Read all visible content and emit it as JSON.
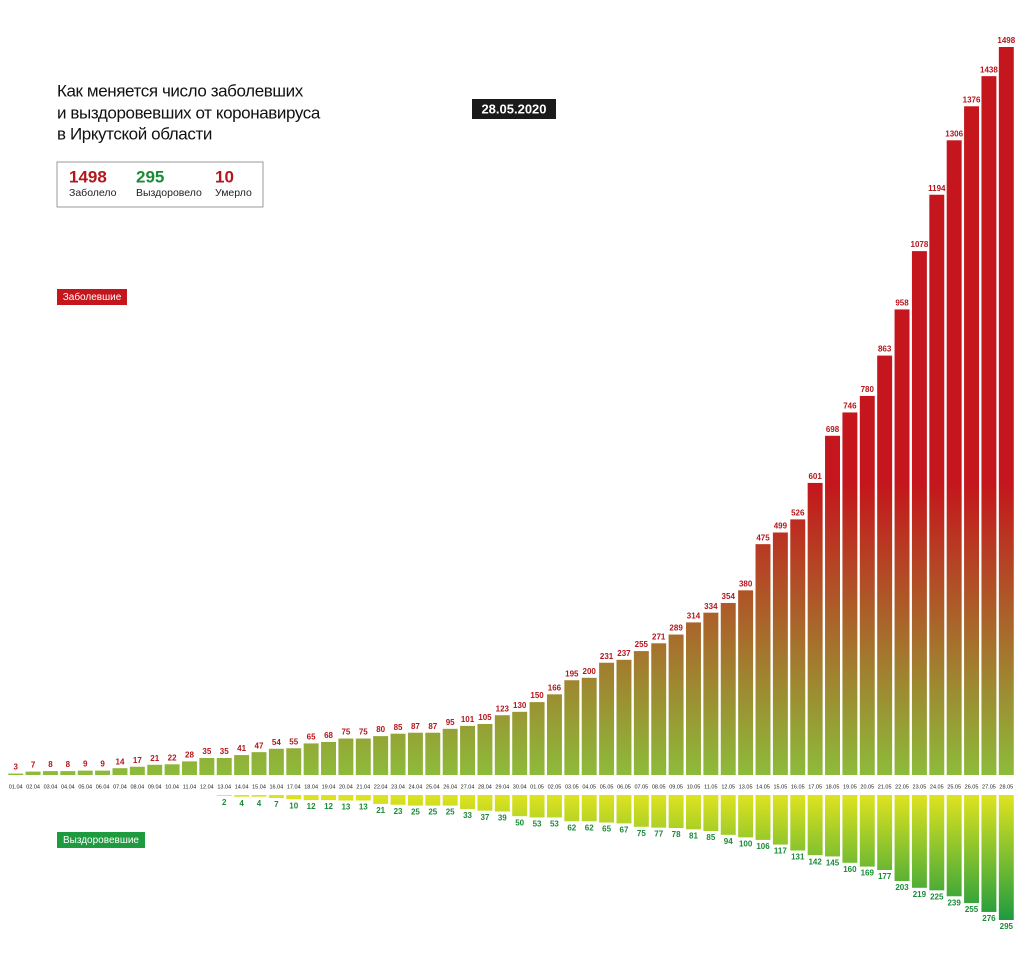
{
  "chart_data": {
    "type": "bar",
    "title_lines": [
      "Как меняется число заболевших",
      "и выздоровевших от коронавируса",
      "в Иркутской области"
    ],
    "date": "28.05.2020",
    "stats": [
      {
        "value": 1498,
        "label": "Заболело",
        "color": "#b3161c"
      },
      {
        "value": 295,
        "label": "Выздоровело",
        "color": "#1a8a38"
      },
      {
        "value": 10,
        "label": "Умерло",
        "color": "#b3161c"
      }
    ],
    "categories": [
      "01.04",
      "02.04",
      "03.04",
      "04.04",
      "05.04",
      "06.04",
      "07.04",
      "08.04",
      "09.04",
      "10.04",
      "11.04",
      "12.04",
      "13.04",
      "14.04",
      "15.04",
      "16.04",
      "17.04",
      "18.04",
      "19.04",
      "20.04",
      "21.04",
      "22.04",
      "23.04",
      "24.04",
      "25.04",
      "26.04",
      "27.04",
      "28.04",
      "29.04",
      "30.04",
      "01.05",
      "02.05",
      "03.05",
      "04.05",
      "05.05",
      "06.05",
      "07.05",
      "08.05",
      "09.05",
      "10.05",
      "11.05",
      "12.05",
      "13.05",
      "14.05",
      "15.05",
      "16.05",
      "17.05",
      "18.05",
      "19.05",
      "20.05",
      "21.05",
      "22.05",
      "23.05",
      "24.05",
      "25.05",
      "26.05",
      "27.05",
      "28.05"
    ],
    "series": [
      {
        "name": "Заболевшие",
        "color": "#c4161c",
        "values": [
          3,
          7,
          8,
          8,
          9,
          9,
          14,
          17,
          21,
          22,
          28,
          35,
          35,
          41,
          47,
          54,
          55,
          65,
          68,
          75,
          75,
          80,
          85,
          87,
          87,
          95,
          101,
          105,
          123,
          130,
          150,
          166,
          195,
          200,
          231,
          237,
          255,
          271,
          289,
          314,
          334,
          354,
          380,
          475,
          499,
          526,
          601,
          698,
          746,
          780,
          863,
          958,
          1078,
          1194,
          1306,
          1376,
          1438,
          1498
        ]
      },
      {
        "name": "Выздоровевшие",
        "color": "#1e9b3f",
        "values": [
          null,
          null,
          null,
          null,
          null,
          null,
          null,
          null,
          null,
          null,
          null,
          null,
          2,
          4,
          4,
          7,
          10,
          12,
          12,
          13,
          13,
          21,
          23,
          25,
          25,
          25,
          33,
          37,
          39,
          50,
          53,
          53,
          62,
          62,
          65,
          67,
          75,
          77,
          78,
          81,
          85,
          94,
          100,
          106,
          117,
          131,
          142,
          145,
          160,
          169,
          177,
          203,
          219,
          225,
          239,
          255,
          276,
          295
        ]
      }
    ]
  }
}
